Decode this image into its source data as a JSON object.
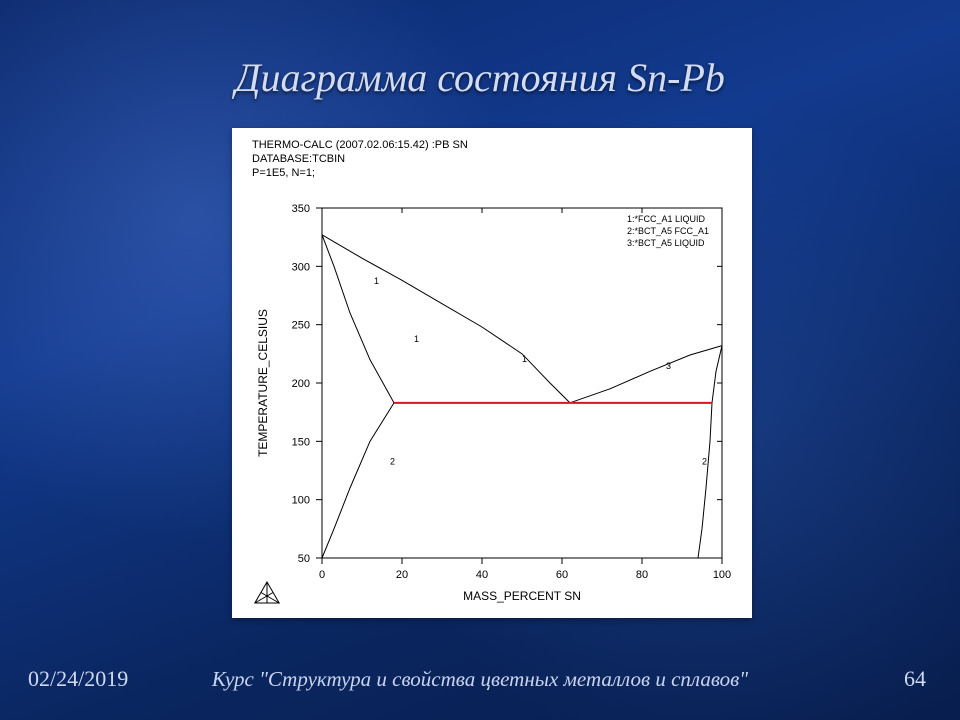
{
  "slide": {
    "title": "Диаграмма состояния Sn-Pb",
    "date": "02/24/2019",
    "course": "Курс \"Структура и свойства цветных металлов и сплавов\"",
    "page_number": "64",
    "title_fontsize": 40,
    "title_color": "#d2dcf2",
    "footer_color": "#cfd9f0",
    "bg_gradient": [
      "#0c2a6e",
      "#123a8e",
      "#0a2660",
      "#081e4e"
    ]
  },
  "chart": {
    "type": "phase-diagram",
    "panel_bg": "#ffffff",
    "header_lines": [
      "THERMO-CALC (2007.02.06:15.42) :PB SN",
      "DATABASE:TCBIN",
      "P=1E5, N=1;"
    ],
    "legend": [
      "1:*FCC_A1 LIQUID",
      "2:*BCT_A5 FCC_A1",
      "3:*BCT_A5 LIQUID"
    ],
    "x_label": "MASS_PERCENT SN",
    "y_label": "TEMPERATURE_CELSIUS",
    "xlim": [
      0,
      100
    ],
    "xtick_step": 20,
    "ylim": [
      50,
      350
    ],
    "ytick_step": 50,
    "axis_color": "#000000",
    "curve_color": "#000000",
    "eutectic_color": "#d4181f",
    "curve_width": 1,
    "eutectic_width": 2,
    "label_fontsize": 11,
    "header_fontsize": 11,
    "axis_label_fontsize": 12,
    "curves": {
      "liquidus_left": [
        [
          0,
          327
        ],
        [
          10,
          307
        ],
        [
          20,
          288
        ],
        [
          30,
          268
        ],
        [
          40,
          248
        ],
        [
          50,
          225
        ],
        [
          57,
          200
        ],
        [
          62,
          183
        ]
      ],
      "liquidus_right": [
        [
          62,
          183
        ],
        [
          72,
          195
        ],
        [
          82,
          210
        ],
        [
          92,
          224
        ],
        [
          100,
          232
        ]
      ],
      "solvus_left": [
        [
          0,
          327
        ],
        [
          3,
          300
        ],
        [
          7,
          260
        ],
        [
          12,
          220
        ],
        [
          18,
          183
        ]
      ],
      "solidus_left_lo": [
        [
          18,
          183
        ],
        [
          12,
          150
        ],
        [
          7,
          110
        ],
        [
          3,
          75
        ],
        [
          0,
          50
        ]
      ],
      "solvus_right": [
        [
          100,
          232
        ],
        [
          98.5,
          210
        ],
        [
          97.5,
          183
        ]
      ],
      "solidus_right_lo": [
        [
          97.5,
          183
        ],
        [
          97,
          150
        ],
        [
          96,
          110
        ],
        [
          95,
          75
        ],
        [
          94,
          50
        ]
      ],
      "eutectic_line": [
        [
          18,
          183
        ],
        [
          97.5,
          183
        ]
      ]
    },
    "curve_tags": [
      {
        "text": "1",
        "x": 13,
        "y": 285
      },
      {
        "text": "1",
        "x": 23,
        "y": 235
      },
      {
        "text": "1",
        "x": 50,
        "y": 218
      },
      {
        "text": "3",
        "x": 86,
        "y": 212
      },
      {
        "text": "2",
        "x": 17,
        "y": 130
      },
      {
        "text": "2",
        "x": 95,
        "y": 130
      }
    ]
  }
}
